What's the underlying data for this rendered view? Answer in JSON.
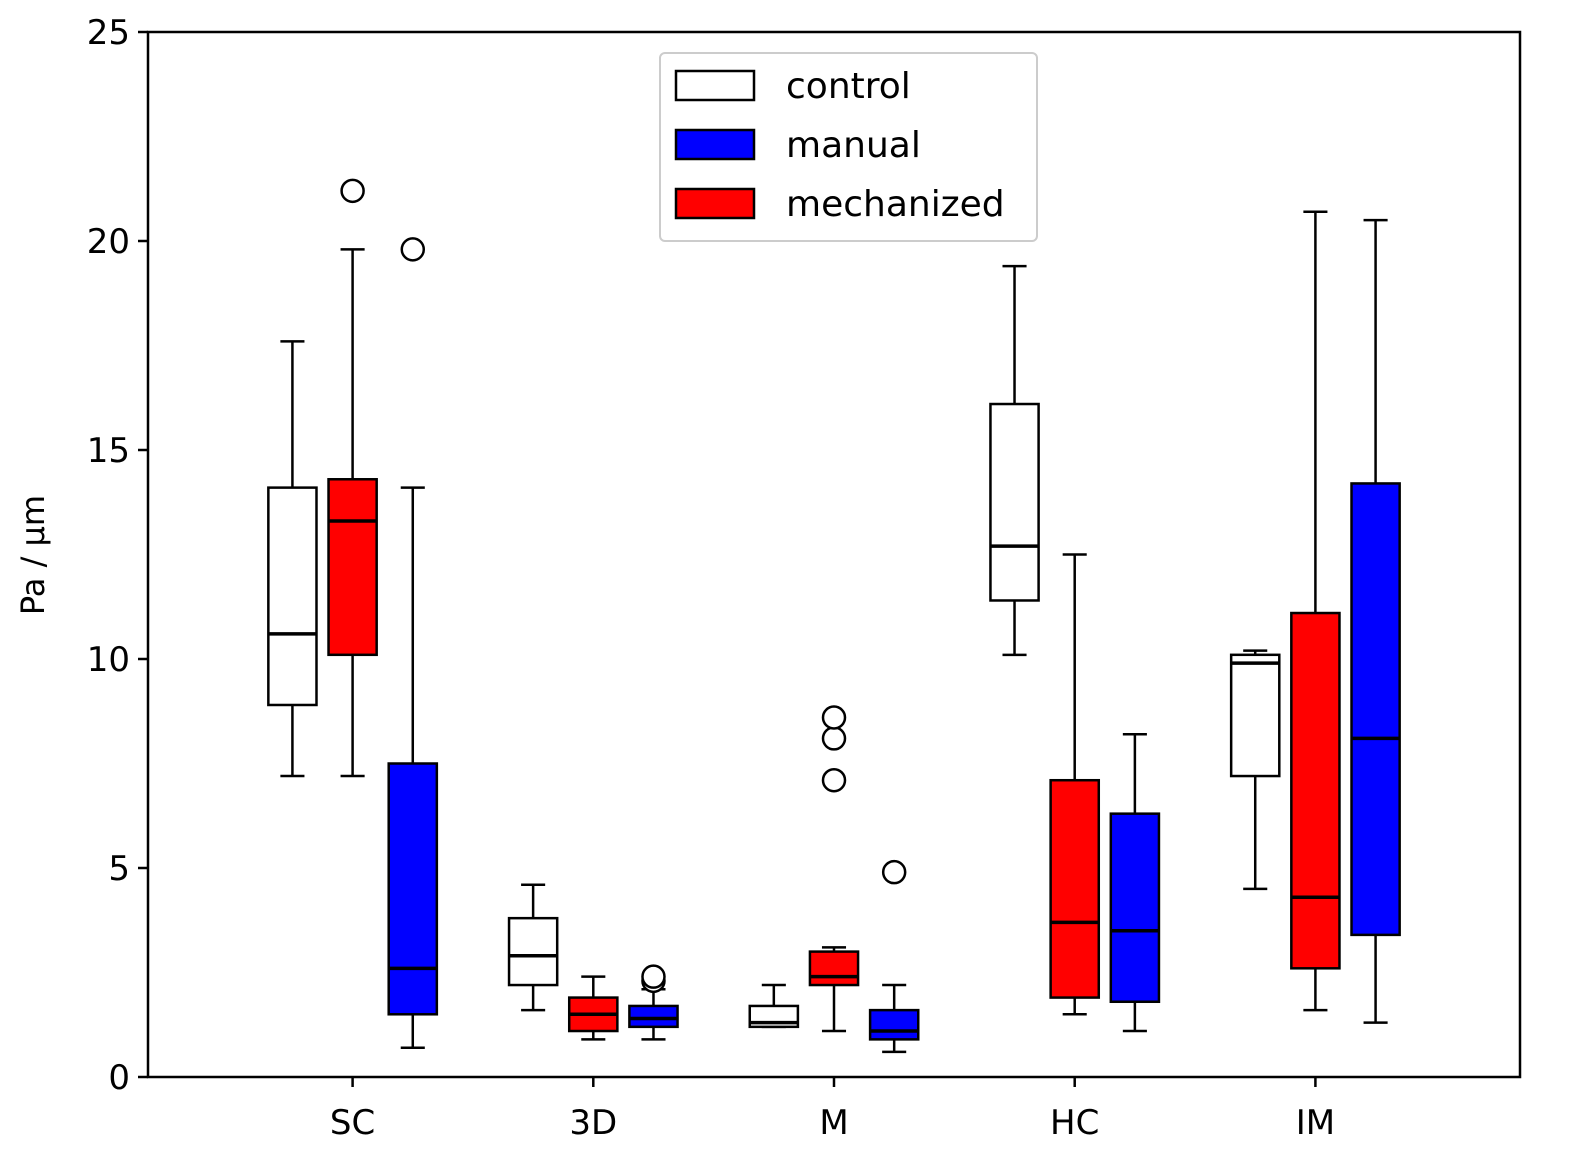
{
  "chart_data": {
    "type": "boxplot",
    "title": "",
    "xlabel": "",
    "ylabel": "Pa / µm",
    "ylim": [
      0,
      25
    ],
    "yticks": [
      0,
      5,
      10,
      15,
      20,
      25
    ],
    "grid": false,
    "legend_position": "top-center",
    "categories": [
      "SC",
      "3D",
      "M",
      "HC",
      "IM"
    ],
    "legend": [
      {
        "name": "control",
        "color": "#ffffff"
      },
      {
        "name": "manual",
        "color": "#0000ff"
      },
      {
        "name": "mechanized",
        "color": "#ff0000"
      }
    ],
    "groups": [
      {
        "category": "SC",
        "boxes": [
          {
            "series": "control",
            "color": "#ffffff",
            "whisker_low": 7.2,
            "q1": 8.9,
            "median": 10.6,
            "q3": 14.1,
            "whisker_high": 17.6,
            "outliers": []
          },
          {
            "series": "mechanized",
            "color": "#ff0000",
            "whisker_low": 7.2,
            "q1": 10.1,
            "median": 13.3,
            "q3": 14.3,
            "whisker_high": 19.8,
            "outliers": [
              21.2
            ]
          },
          {
            "series": "manual",
            "color": "#0000ff",
            "whisker_low": 0.7,
            "q1": 1.5,
            "median": 2.6,
            "q3": 7.5,
            "whisker_high": 14.1,
            "outliers": [
              19.8
            ]
          }
        ]
      },
      {
        "category": "3D",
        "boxes": [
          {
            "series": "control",
            "color": "#ffffff",
            "whisker_low": 1.6,
            "q1": 2.2,
            "median": 2.9,
            "q3": 3.8,
            "whisker_high": 4.6,
            "outliers": []
          },
          {
            "series": "mechanized",
            "color": "#ff0000",
            "whisker_low": 0.9,
            "q1": 1.1,
            "median": 1.5,
            "q3": 1.9,
            "whisker_high": 2.4,
            "outliers": []
          },
          {
            "series": "manual",
            "color": "#0000ff",
            "whisker_low": 0.9,
            "q1": 1.2,
            "median": 1.4,
            "q3": 1.7,
            "whisker_high": 2.1,
            "outliers": [
              2.3,
              2.4
            ]
          }
        ]
      },
      {
        "category": "M",
        "boxes": [
          {
            "series": "control",
            "color": "#ffffff",
            "whisker_low": 1.2,
            "q1": 1.2,
            "median": 1.3,
            "q3": 1.7,
            "whisker_high": 2.2,
            "outliers": []
          },
          {
            "series": "mechanized",
            "color": "#ff0000",
            "whisker_low": 1.1,
            "q1": 2.2,
            "median": 2.4,
            "q3": 3.0,
            "whisker_high": 3.1,
            "outliers": [
              7.1,
              8.1,
              8.6
            ]
          },
          {
            "series": "manual",
            "color": "#0000ff",
            "whisker_low": 0.6,
            "q1": 0.9,
            "median": 1.1,
            "q3": 1.6,
            "whisker_high": 2.2,
            "outliers": [
              4.9
            ]
          }
        ]
      },
      {
        "category": "HC",
        "boxes": [
          {
            "series": "control",
            "color": "#ffffff",
            "whisker_low": 10.1,
            "q1": 11.4,
            "median": 12.7,
            "q3": 16.1,
            "whisker_high": 19.4,
            "outliers": []
          },
          {
            "series": "mechanized",
            "color": "#ff0000",
            "whisker_low": 1.5,
            "q1": 1.9,
            "median": 3.7,
            "q3": 7.1,
            "whisker_high": 12.5,
            "outliers": []
          },
          {
            "series": "manual",
            "color": "#0000ff",
            "whisker_low": 1.1,
            "q1": 1.8,
            "median": 3.5,
            "q3": 6.3,
            "whisker_high": 8.2,
            "outliers": []
          }
        ]
      },
      {
        "category": "IM",
        "boxes": [
          {
            "series": "control",
            "color": "#ffffff",
            "whisker_low": 4.5,
            "q1": 7.2,
            "median": 9.9,
            "q3": 10.1,
            "whisker_high": 10.2,
            "outliers": []
          },
          {
            "series": "mechanized",
            "color": "#ff0000",
            "whisker_low": 1.6,
            "q1": 2.6,
            "median": 4.3,
            "q3": 11.1,
            "whisker_high": 20.7,
            "outliers": []
          },
          {
            "series": "manual",
            "color": "#0000ff",
            "whisker_low": 1.3,
            "q1": 3.4,
            "median": 8.1,
            "q3": 14.2,
            "whisker_high": 20.5,
            "outliers": []
          }
        ]
      }
    ]
  }
}
